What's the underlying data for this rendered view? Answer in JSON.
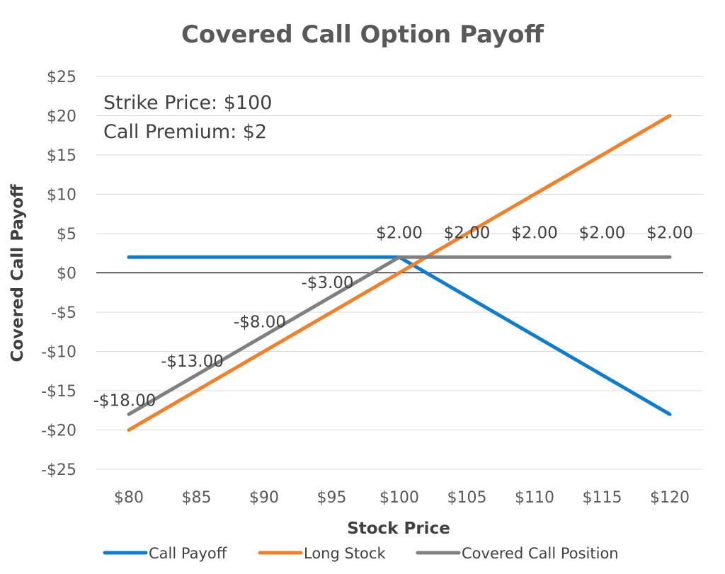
{
  "chart_data": {
    "type": "line",
    "title": "Covered Call Option Payoff",
    "xlabel": "Stock Price",
    "ylabel": "Covered Call Payoff",
    "x": [
      80,
      85,
      90,
      95,
      100,
      105,
      110,
      115,
      120
    ],
    "x_tick_labels": [
      "$80",
      "$85",
      "$90",
      "$95",
      "$100",
      "$105",
      "$110",
      "$115",
      "$120"
    ],
    "ylim": [
      -25,
      25
    ],
    "y_ticks": [
      25,
      20,
      15,
      10,
      5,
      0,
      -5,
      -10,
      -15,
      -20,
      -25
    ],
    "y_tick_labels": [
      "$25",
      "$20",
      "$15",
      "$10",
      "$5",
      "$0",
      "-$5",
      "-$10",
      "-$15",
      "-$20",
      "-$25"
    ],
    "grid": true,
    "legend_position": "bottom",
    "series": [
      {
        "name": "Call Payoff",
        "color": "#0f7ccf",
        "values": [
          2,
          2,
          2,
          2,
          2,
          -3,
          -8,
          -13,
          -18
        ]
      },
      {
        "name": "Long Stock",
        "color": "#f37f28",
        "values": [
          -20,
          -15,
          -10,
          -5,
          0,
          5,
          10,
          15,
          20
        ]
      },
      {
        "name": "Covered Call Position",
        "color": "#808080",
        "values": [
          -18,
          -13,
          -8,
          -3,
          2,
          2,
          2,
          2,
          2
        ],
        "data_labels": [
          "-$18.00",
          "-$13.00",
          "-$8.00",
          "-$3.00",
          "$2.00",
          "$2.00",
          "$2.00",
          "$2.00",
          "$2.00"
        ]
      }
    ],
    "annotations": [
      "Strike Price: $100",
      "Call Premium: $2"
    ]
  }
}
